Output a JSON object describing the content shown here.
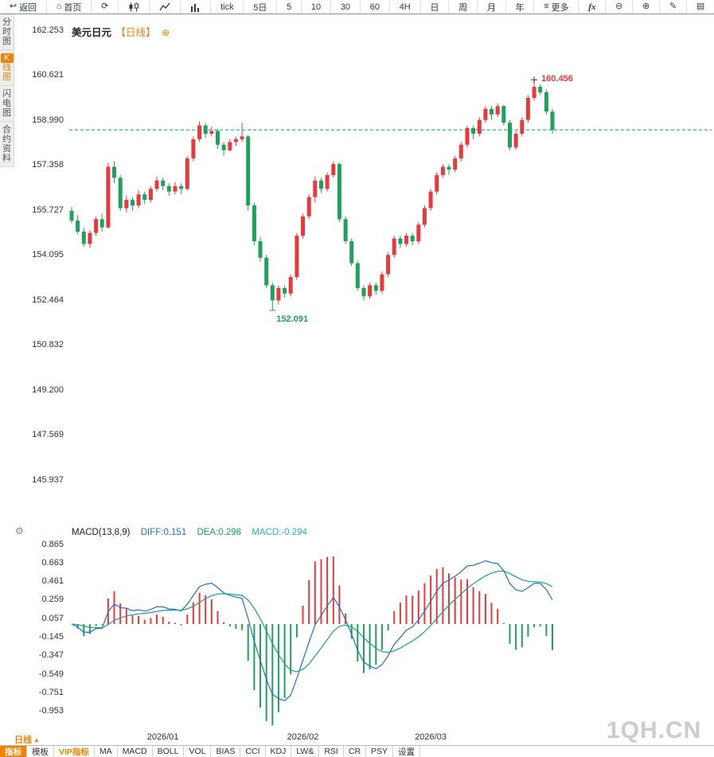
{
  "toolbar": {
    "items": [
      {
        "name": "back-button",
        "icon": "back",
        "label": "返回"
      },
      {
        "name": "home-button",
        "icon": "home",
        "label": "首页"
      },
      {
        "name": "refresh-button",
        "icon": "refresh"
      },
      {
        "name": "kline-view-button",
        "icon": "kline"
      },
      {
        "name": "line-view-button",
        "icon": "linechart"
      },
      {
        "name": "volume-view-button",
        "icon": "volume"
      },
      {
        "name": "period-tick",
        "label": "tick"
      },
      {
        "name": "period-5d",
        "label": "5日"
      },
      {
        "name": "period-5m",
        "label": "5"
      },
      {
        "name": "period-10m",
        "label": "10"
      },
      {
        "name": "period-30m",
        "label": "30"
      },
      {
        "name": "period-60m",
        "label": "60"
      },
      {
        "name": "period-4h",
        "label": "4H"
      },
      {
        "name": "period-day",
        "label": "日"
      },
      {
        "name": "period-week",
        "label": "周"
      },
      {
        "name": "period-month",
        "label": "月"
      },
      {
        "name": "period-year",
        "label": "年"
      },
      {
        "name": "more-periods-button",
        "icon": "menu",
        "label": "更多"
      },
      {
        "name": "fx-button",
        "label": "fx"
      },
      {
        "name": "zoom-out-button",
        "icon": "zoom-out"
      },
      {
        "name": "zoom-in-button",
        "icon": "zoom-in"
      },
      {
        "name": "draw-button",
        "icon": "pen"
      },
      {
        "name": "more-tools-button",
        "icon": "more"
      }
    ]
  },
  "sidebar": {
    "items": [
      {
        "name": "tab-time-chart",
        "label": "分时图",
        "active": false
      },
      {
        "name": "tab-kline-chart",
        "label": "K线图",
        "active": true
      },
      {
        "name": "tab-flash-chart",
        "label": "闪电图",
        "active": false
      },
      {
        "name": "tab-contract-info",
        "label": "合约资料",
        "active": false
      }
    ]
  },
  "chart": {
    "title": "美元日元",
    "period_tag": "【日线】",
    "plus_icon": "⊕",
    "high_label": "160.456",
    "low_label": "152.091"
  },
  "macd_header": {
    "name_label": "MACD(13,8,9)",
    "diff_label": "DIFF:0.151",
    "dea_label": "DEA:0.298",
    "macd_label": "MACD:-0.294"
  },
  "bottom": {
    "period_label": "日线",
    "arrow": "▲",
    "tabs": [
      {
        "name": "indicators",
        "label": "指标",
        "style": "selected"
      },
      {
        "name": "templates",
        "label": "模板",
        "style": ""
      },
      {
        "name": "vip-indicators",
        "label": "VIP指标",
        "style": "vip"
      },
      {
        "name": "ma",
        "label": "MA",
        "style": ""
      },
      {
        "name": "macd",
        "label": "MACD",
        "style": ""
      },
      {
        "name": "boll",
        "label": "BOLL",
        "style": ""
      },
      {
        "name": "vol",
        "label": "VOL",
        "style": ""
      },
      {
        "name": "bias",
        "label": "BIAS",
        "style": ""
      },
      {
        "name": "cci",
        "label": "CCI",
        "style": ""
      },
      {
        "name": "kdj",
        "label": "KDJ",
        "style": ""
      },
      {
        "name": "lwr",
        "label": "LW&",
        "style": ""
      },
      {
        "name": "rsi",
        "label": "RSI",
        "style": ""
      },
      {
        "name": "cr",
        "label": "CR",
        "style": ""
      },
      {
        "name": "psy",
        "label": "PSY",
        "style": ""
      },
      {
        "name": "settings",
        "label": "设置",
        "style": ""
      }
    ]
  },
  "watermark": "1QH.CN",
  "colors": {
    "up": "#e8393d",
    "down": "#1fa05c",
    "accent": "#f08300",
    "dashed": "#0e8f8f",
    "diff_line": "#1f6fd6",
    "dea_line": "#17a287",
    "macd_text": "#29aee0",
    "dea_text": "#17a267"
  },
  "chart_data": {
    "type": "candlestick",
    "symbol": "美元日元",
    "period": "日线",
    "current_price": 158.64,
    "high_annotation": 160.456,
    "low_annotation": 152.091,
    "y_ticks": [
      162.253,
      160.621,
      158.99,
      157.358,
      155.727,
      154.095,
      152.464,
      150.832,
      149.2,
      147.569,
      145.937
    ],
    "macd_ticks": [
      0.865,
      0.663,
      0.461,
      0.259,
      0.057,
      -0.145,
      -0.347,
      -0.549,
      -0.751,
      -0.953
    ],
    "macd_params": [
      13,
      8,
      9
    ],
    "macd_values": {
      "diff": 0.151,
      "dea": 0.298,
      "macd": -0.294
    },
    "x_labels": [
      {
        "label": "2026/01",
        "index": 15
      },
      {
        "label": "2026/02",
        "index": 38
      },
      {
        "label": "2026/03",
        "index": 59
      }
    ],
    "candles": [
      [
        155.7,
        155.85,
        155.25,
        155.35
      ],
      [
        155.35,
        155.55,
        154.85,
        154.95
      ],
      [
        154.95,
        155.1,
        154.4,
        154.5
      ],
      [
        154.5,
        155.0,
        154.35,
        154.9
      ],
      [
        154.9,
        155.5,
        154.8,
        155.4
      ],
      [
        155.4,
        155.6,
        154.95,
        155.1
      ],
      [
        155.1,
        157.45,
        155.05,
        157.3
      ],
      [
        157.3,
        157.5,
        156.7,
        156.9
      ],
      [
        156.9,
        157.0,
        155.7,
        155.8
      ],
      [
        155.8,
        156.25,
        155.65,
        156.1
      ],
      [
        156.1,
        156.2,
        155.7,
        155.9
      ],
      [
        155.9,
        156.45,
        155.8,
        156.3
      ],
      [
        156.3,
        156.4,
        155.95,
        156.1
      ],
      [
        156.1,
        156.6,
        156.0,
        156.5
      ],
      [
        156.5,
        156.95,
        156.4,
        156.8
      ],
      [
        156.8,
        156.9,
        156.45,
        156.6
      ],
      [
        156.6,
        156.7,
        156.25,
        156.4
      ],
      [
        156.4,
        156.75,
        156.3,
        156.6
      ],
      [
        156.6,
        156.7,
        156.3,
        156.5
      ],
      [
        156.5,
        157.7,
        156.45,
        157.6
      ],
      [
        157.6,
        158.4,
        157.5,
        158.3
      ],
      [
        158.3,
        158.95,
        158.2,
        158.8
      ],
      [
        158.8,
        158.9,
        158.35,
        158.5
      ],
      [
        158.5,
        158.75,
        158.4,
        158.6
      ],
      [
        158.6,
        158.65,
        157.95,
        158.1
      ],
      [
        158.1,
        158.2,
        157.7,
        157.9
      ],
      [
        157.9,
        158.3,
        157.85,
        158.2
      ],
      [
        158.2,
        158.4,
        158.05,
        158.3
      ],
      [
        158.3,
        158.9,
        158.2,
        158.4
      ],
      [
        158.4,
        158.45,
        155.7,
        155.9
      ],
      [
        155.9,
        156.0,
        154.45,
        154.6
      ],
      [
        154.6,
        154.75,
        153.85,
        154.0
      ],
      [
        154.0,
        154.1,
        152.9,
        153.0
      ],
      [
        153.0,
        153.1,
        152.091,
        152.45
      ],
      [
        152.45,
        153.0,
        152.3,
        152.9
      ],
      [
        152.9,
        153.0,
        152.55,
        152.7
      ],
      [
        152.7,
        153.4,
        152.6,
        153.3
      ],
      [
        153.3,
        154.9,
        153.2,
        154.8
      ],
      [
        154.8,
        155.6,
        154.7,
        155.5
      ],
      [
        155.5,
        156.3,
        155.4,
        156.2
      ],
      [
        156.2,
        156.95,
        156.0,
        156.8
      ],
      [
        156.8,
        156.9,
        156.35,
        156.5
      ],
      [
        156.5,
        157.1,
        156.4,
        157.0
      ],
      [
        157.0,
        157.5,
        156.9,
        157.4
      ],
      [
        157.4,
        157.45,
        155.3,
        155.4
      ],
      [
        155.4,
        155.5,
        154.5,
        154.6
      ],
      [
        154.6,
        154.7,
        153.7,
        153.8
      ],
      [
        153.8,
        153.9,
        152.8,
        152.9
      ],
      [
        152.9,
        153.0,
        152.45,
        152.6
      ],
      [
        152.6,
        153.1,
        152.5,
        153.0
      ],
      [
        153.0,
        153.1,
        152.65,
        152.8
      ],
      [
        152.8,
        153.5,
        152.7,
        153.4
      ],
      [
        153.4,
        154.2,
        153.3,
        154.1
      ],
      [
        154.1,
        154.8,
        154.0,
        154.7
      ],
      [
        154.7,
        154.8,
        154.35,
        154.5
      ],
      [
        154.5,
        154.9,
        154.4,
        154.8
      ],
      [
        154.8,
        154.9,
        154.45,
        154.6
      ],
      [
        154.6,
        155.3,
        154.5,
        155.2
      ],
      [
        155.2,
        155.9,
        155.1,
        155.8
      ],
      [
        155.8,
        156.5,
        155.7,
        156.4
      ],
      [
        156.4,
        157.1,
        156.3,
        157.0
      ],
      [
        157.0,
        157.4,
        156.9,
        157.3
      ],
      [
        157.3,
        157.4,
        157.0,
        157.2
      ],
      [
        157.2,
        157.7,
        157.1,
        157.6
      ],
      [
        157.6,
        158.2,
        157.5,
        158.1
      ],
      [
        158.1,
        158.8,
        158.0,
        158.7
      ],
      [
        158.7,
        158.8,
        158.3,
        158.5
      ],
      [
        158.5,
        159.1,
        158.4,
        159.0
      ],
      [
        159.0,
        159.5,
        158.9,
        159.4
      ],
      [
        159.4,
        159.5,
        159.0,
        159.2
      ],
      [
        159.2,
        159.6,
        159.1,
        159.5
      ],
      [
        159.5,
        159.55,
        158.8,
        158.9
      ],
      [
        158.9,
        159.0,
        157.9,
        158.0
      ],
      [
        158.0,
        158.6,
        157.9,
        158.5
      ],
      [
        158.5,
        159.1,
        158.4,
        159.0
      ],
      [
        159.0,
        159.9,
        158.9,
        159.8
      ],
      [
        159.8,
        160.456,
        159.7,
        160.2
      ],
      [
        160.2,
        160.3,
        159.9,
        160.0
      ],
      [
        160.0,
        160.1,
        159.2,
        159.3
      ],
      [
        159.3,
        159.4,
        158.5,
        158.64
      ]
    ]
  }
}
